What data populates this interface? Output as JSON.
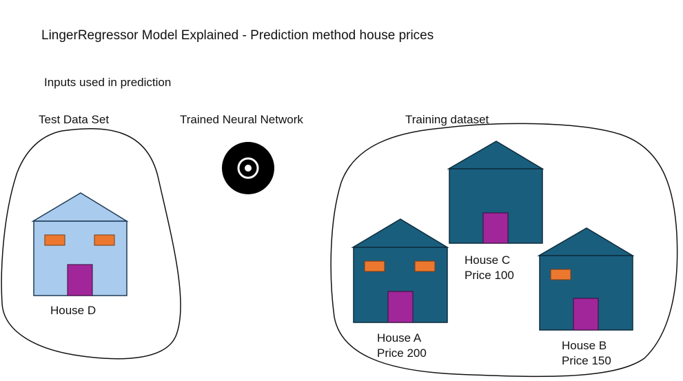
{
  "title": "LingerRegressor Model Explained - Prediction method house prices",
  "subtitle": "Inputs used in prediction",
  "sections": {
    "test": "Test Data Set",
    "network": "Trained Neural Network",
    "training": "Training dataset"
  },
  "houses": {
    "d": {
      "name": "House D",
      "price": ""
    },
    "c": {
      "name": "House C",
      "price": "Price 100"
    },
    "a": {
      "name": "House A",
      "price": "Price 200"
    },
    "b": {
      "name": "House B",
      "price": "Price 150"
    }
  },
  "colors": {
    "test_house": "#a9cbed",
    "training_house": "#1a5e7e",
    "door": "#a0269a",
    "window": "#ec7830",
    "network_icon": "#000000"
  },
  "icons": {
    "network": "target-icon"
  }
}
